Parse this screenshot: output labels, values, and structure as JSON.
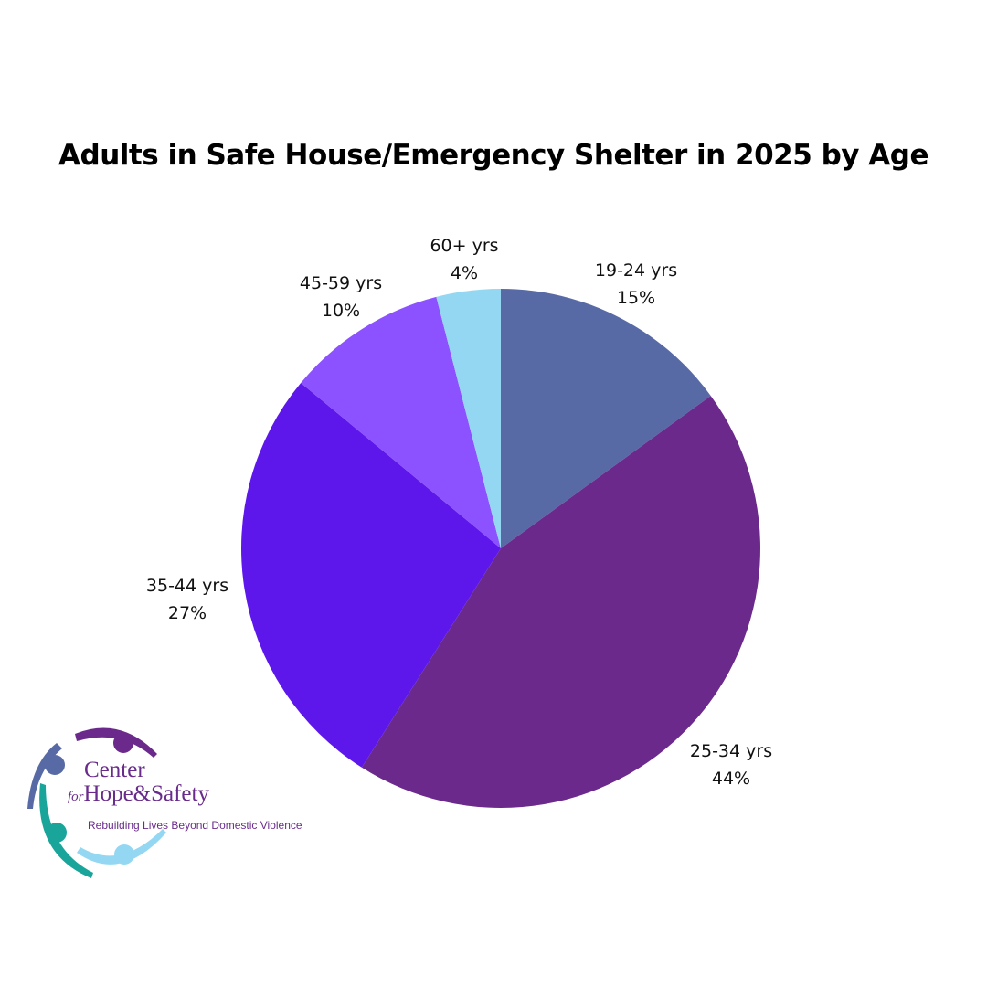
{
  "chart_data": {
    "type": "pie",
    "title": "Adults in Safe House/Emergency Shelter in 2025 by Age",
    "categories": [
      "19-24 yrs",
      "25-34 yrs",
      "35-44 yrs",
      "45-59 yrs",
      "60+ yrs"
    ],
    "values": [
      15,
      44,
      27,
      10,
      4
    ],
    "labels": [
      "15%",
      "44%",
      "27%",
      "10%",
      "4%"
    ],
    "colors": [
      "#586aa5",
      "#6b2a8b",
      "#5d17eb",
      "#8c52ff",
      "#93d7f2"
    ],
    "start_angle": "12 o'clock",
    "direction": "clockwise",
    "legend": "none (direct labels)"
  },
  "logo": {
    "line1": "Center",
    "line2_for": "for",
    "line2": "Hope&Safety",
    "tagline": "Rebuilding Lives Beyond Domestic Violence"
  }
}
